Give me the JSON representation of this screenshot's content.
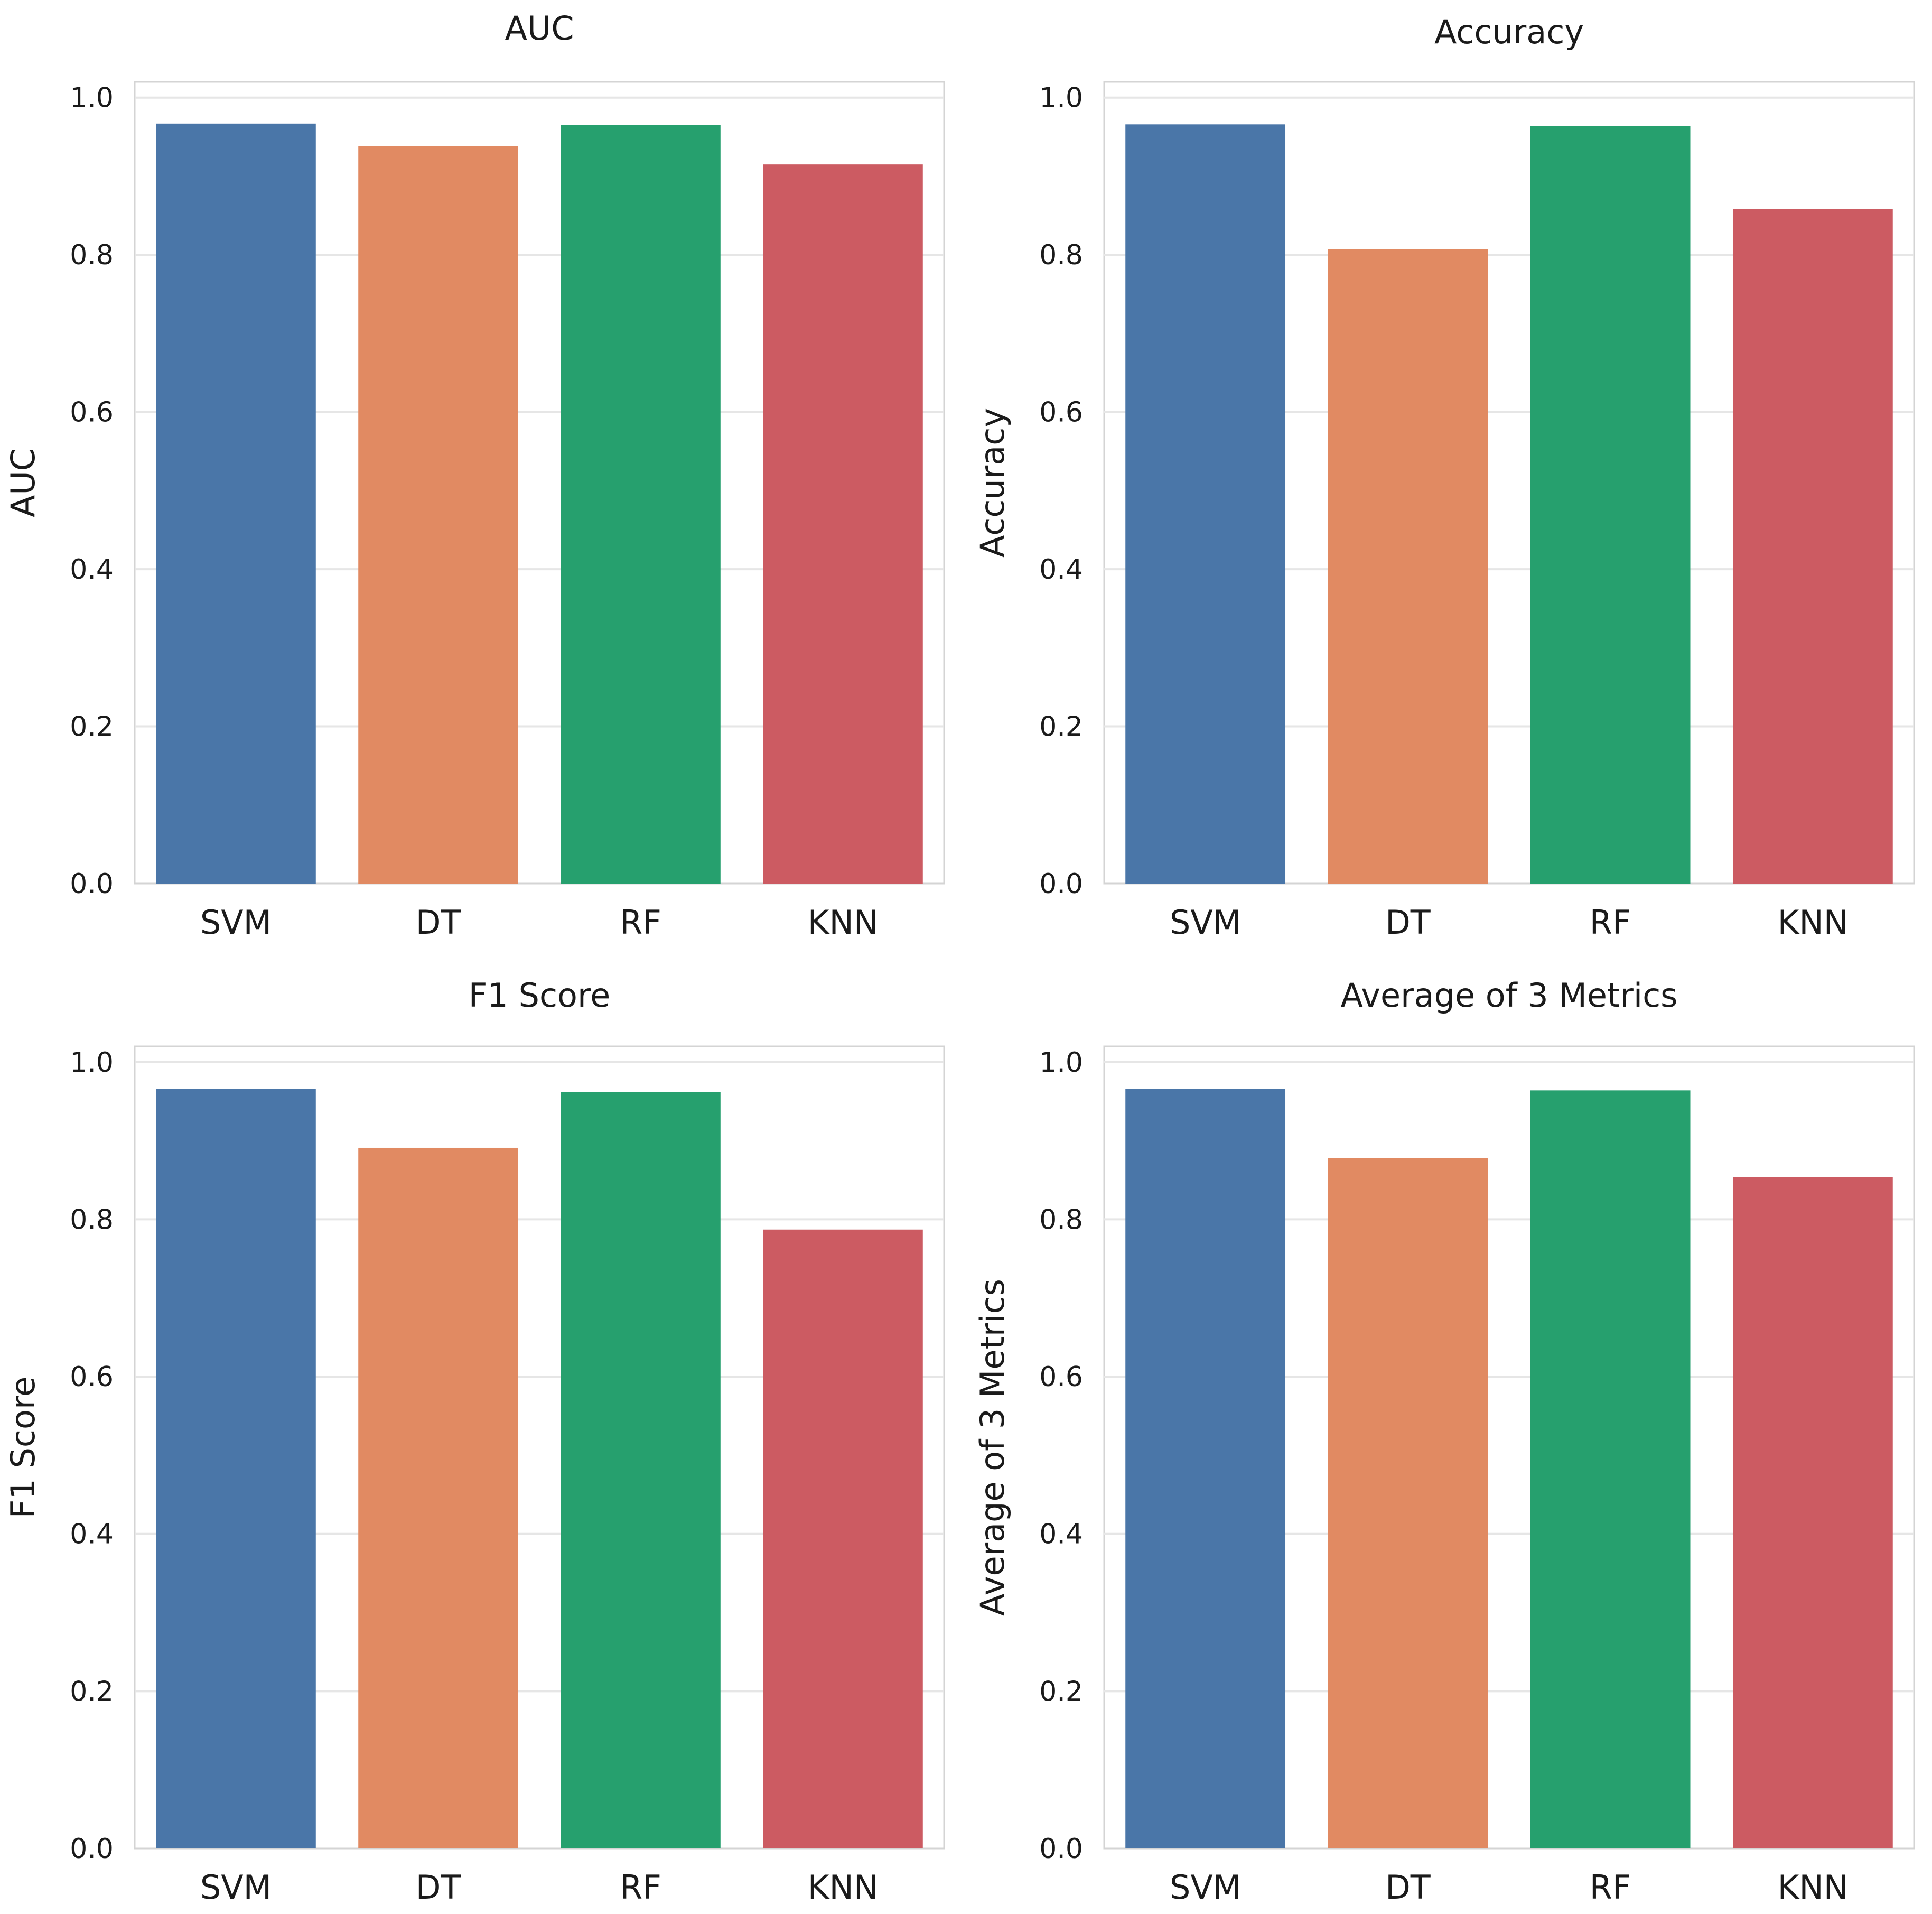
{
  "chart_data": [
    {
      "type": "bar",
      "title": "AUC",
      "xlabel": "",
      "ylabel": "AUC",
      "categories": [
        "SVM",
        "DT",
        "RF",
        "KNN"
      ],
      "values": [
        0.967,
        0.938,
        0.965,
        0.915
      ],
      "ylim": [
        0,
        1.02
      ],
      "yticks": [
        "0.0",
        "0.2",
        "0.4",
        "0.6",
        "0.8",
        "1.0"
      ],
      "grid": true
    },
    {
      "type": "bar",
      "title": "Accuracy",
      "xlabel": "",
      "ylabel": "Accuracy",
      "categories": [
        "SVM",
        "DT",
        "RF",
        "KNN"
      ],
      "values": [
        0.966,
        0.807,
        0.964,
        0.858
      ],
      "ylim": [
        0,
        1.02
      ],
      "yticks": [
        "0.0",
        "0.2",
        "0.4",
        "0.6",
        "0.8",
        "1.0"
      ],
      "grid": true
    },
    {
      "type": "bar",
      "title": "F1 Score",
      "xlabel": "",
      "ylabel": "F1 Score",
      "categories": [
        "SVM",
        "DT",
        "RF",
        "KNN"
      ],
      "values": [
        0.966,
        0.891,
        0.962,
        0.787
      ],
      "ylim": [
        0,
        1.02
      ],
      "yticks": [
        "0.0",
        "0.2",
        "0.4",
        "0.6",
        "0.8",
        "1.0"
      ],
      "grid": true
    },
    {
      "type": "bar",
      "title": "Average of 3 Metrics",
      "xlabel": "",
      "ylabel": "Average of 3 Metrics",
      "categories": [
        "SVM",
        "DT",
        "RF",
        "KNN"
      ],
      "values": [
        0.966,
        0.878,
        0.964,
        0.854
      ],
      "ylim": [
        0,
        1.02
      ],
      "yticks": [
        "0.0",
        "0.2",
        "0.4",
        "0.6",
        "0.8",
        "1.0"
      ],
      "grid": true
    }
  ],
  "colors": {
    "bars": [
      "#4a76a8",
      "#e18a62",
      "#26a06e",
      "#cc5b62"
    ],
    "grid": "#e6e6e6",
    "frame": "#d4d4d4",
    "text": "#1a1a1a"
  }
}
